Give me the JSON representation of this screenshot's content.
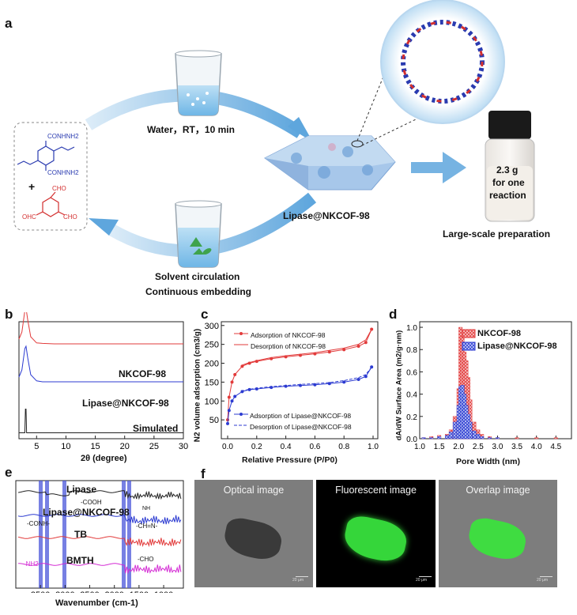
{
  "panel_labels": {
    "a": "a",
    "b": "b",
    "c": "c",
    "d": "d",
    "e": "e",
    "f": "f"
  },
  "panel_a": {
    "top_arrow_label": "Water，RT，10 min",
    "product_label": "Lipase@NKCOF-98",
    "bottom_arrow_label_1": "Solvent circulation",
    "bottom_arrow_label_2": "Continuous embedding",
    "vial_text_1": "2.3 g",
    "vial_text_2": "for one",
    "vial_text_3": "reaction",
    "vial_caption": "Large-scale preparation",
    "monomer_1_group_1": "CONHNH2",
    "monomer_1_group_2": "CONHNH2",
    "plus": "+",
    "monomer_2_group_1": "CHO",
    "monomer_2_group_2": "OHC",
    "monomer_2_group_3": "CHO"
  },
  "panel_b": {
    "series_labels": [
      "NKCOF-98",
      "Lipase@NKCOF-98",
      "Simulated"
    ],
    "colors": {
      "NKCOF-98": "#e23b3b",
      "Lipase@NKCOF-98": "#2c3bd1",
      "Simulated": "#222222"
    },
    "xticks": [
      "5",
      "10",
      "15",
      "20",
      "25",
      "30"
    ],
    "xlabel": "2θ (degree)"
  },
  "panel_c": {
    "legend": [
      "Adsorption of NKCOF-98",
      "Desorption of NKCOF-98",
      "Adsorption of Lipase@NKCOF-98",
      "Desorption of Lipase@NKCOF-98"
    ],
    "ylabel": "N2 volume adsorption (cm3/g)",
    "xlabel": "Relative Pressure (P/P0)",
    "yticks": [
      "50",
      "100",
      "150",
      "200",
      "250",
      "300"
    ],
    "xticks": [
      "0.0",
      "0.2",
      "0.4",
      "0.6",
      "0.8",
      "1.0"
    ]
  },
  "panel_d": {
    "legend": [
      "NKCOF-98",
      "Lipase@NKCOF-98"
    ],
    "ylabel": "dA/dW Surface Area (m2/g·nm)",
    "xlabel": "Pore Width (nm)",
    "yticks": [
      "0.0",
      "0.2",
      "0.4",
      "0.6",
      "0.8",
      "1.0"
    ],
    "xticks": [
      "1.0",
      "1.5",
      "2.0",
      "2.5",
      "3.0",
      "3.5",
      "4.0",
      "4.5"
    ]
  },
  "panel_e": {
    "series_labels": [
      "Lipase",
      "Lipase@NKCOF-98",
      "TB",
      "BMTH"
    ],
    "annotations": [
      "-COOH",
      "NH",
      "-CONH-",
      "-CH=N-",
      "-CHO",
      "-NH2"
    ],
    "xticks": [
      "3500",
      "3000",
      "2500",
      "2000",
      "1500",
      "1000"
    ],
    "xlabel": "Wavenumber (cm-1)"
  },
  "panel_f": {
    "image_titles": [
      "Optical image",
      "Fluorescent image",
      "Overlap image"
    ],
    "scale_label": "20 μm"
  },
  "chart_data": [
    {
      "type": "line",
      "panel": "b",
      "xlabel": "2θ (degree)",
      "xlim": [
        2,
        30
      ],
      "series": [
        {
          "name": "NKCOF-98",
          "x": [
            2,
            2.5,
            3,
            3.2,
            3.5,
            4,
            5,
            6,
            8,
            10,
            15,
            20,
            25,
            30
          ],
          "values": [
            0.35,
            0.5,
            0.95,
            1.0,
            0.75,
            0.4,
            0.27,
            0.26,
            0.25,
            0.25,
            0.25,
            0.25,
            0.25,
            0.25
          ]
        },
        {
          "name": "Lipase@NKCOF-98",
          "x": [
            2,
            2.5,
            3,
            3.2,
            3.5,
            4,
            5,
            6,
            8,
            10,
            15,
            20,
            25,
            30
          ],
          "values": [
            0.3,
            0.45,
            0.9,
            0.95,
            0.7,
            0.35,
            0.22,
            0.2,
            0.2,
            0.2,
            0.2,
            0.2,
            0.2,
            0.2
          ]
        },
        {
          "name": "Simulated",
          "x": [
            2,
            3,
            3.1,
            3.2,
            3.3,
            4,
            10,
            20,
            30
          ],
          "values": [
            0,
            0,
            0.6,
            0.6,
            0,
            0,
            0,
            0,
            0
          ]
        }
      ]
    },
    {
      "type": "line",
      "panel": "c",
      "xlabel": "Relative Pressure (P/P0)",
      "ylabel": "N2 volume adsorption (cm3/g)",
      "xlim": [
        0,
        1.0
      ],
      "ylim": [
        0,
        310
      ],
      "series": [
        {
          "name": "Adsorption of NKCOF-98",
          "x": [
            0.0,
            0.01,
            0.03,
            0.05,
            0.1,
            0.15,
            0.2,
            0.3,
            0.4,
            0.5,
            0.6,
            0.7,
            0.8,
            0.9,
            0.95,
            0.99
          ],
          "values": [
            50,
            110,
            150,
            170,
            192,
            200,
            205,
            212,
            217,
            221,
            225,
            230,
            236,
            245,
            255,
            290
          ]
        },
        {
          "name": "Desorption of NKCOF-98",
          "x": [
            0.99,
            0.95,
            0.9,
            0.8,
            0.7,
            0.6,
            0.5,
            0.4,
            0.3,
            0.2,
            0.15,
            0.1
          ],
          "values": [
            290,
            262,
            250,
            240,
            234,
            228,
            224,
            220,
            215,
            207,
            202,
            195
          ]
        },
        {
          "name": "Adsorption of Lipase@NKCOF-98",
          "x": [
            0.0,
            0.01,
            0.03,
            0.05,
            0.1,
            0.15,
            0.2,
            0.3,
            0.4,
            0.5,
            0.6,
            0.7,
            0.8,
            0.9,
            0.95,
            0.99
          ],
          "values": [
            40,
            75,
            100,
            112,
            125,
            130,
            132,
            136,
            139,
            141,
            143,
            146,
            150,
            157,
            165,
            190
          ]
        },
        {
          "name": "Desorption of Lipase@NKCOF-98",
          "x": [
            0.99,
            0.95,
            0.9,
            0.8,
            0.7,
            0.6,
            0.5,
            0.4,
            0.3,
            0.2,
            0.15,
            0.1
          ],
          "values": [
            190,
            170,
            162,
            154,
            149,
            146,
            144,
            141,
            138,
            134,
            131,
            127
          ]
        }
      ]
    },
    {
      "type": "bar",
      "panel": "d",
      "xlabel": "Pore Width (nm)",
      "ylabel": "dA/dW Surface Area (m2/g·nm)",
      "xlim": [
        1.0,
        4.9
      ],
      "ylim": [
        0,
        1.05
      ],
      "series": [
        {
          "name": "NKCOF-98",
          "x": [
            1.1,
            1.3,
            1.5,
            1.7,
            1.8,
            1.9,
            2.0,
            2.05,
            2.1,
            2.15,
            2.2,
            2.25,
            2.3,
            2.4,
            2.5,
            2.6,
            2.8,
            3.0,
            3.5,
            4.0,
            4.5
          ],
          "values": [
            0.01,
            0.02,
            0.03,
            0.04,
            0.08,
            0.2,
            0.45,
            1.0,
            0.92,
            0.78,
            0.7,
            0.55,
            0.35,
            0.15,
            0.08,
            0.04,
            0.02,
            0.01,
            0.01,
            0.01,
            0.01
          ]
        },
        {
          "name": "Lipase@NKCOF-98",
          "x": [
            1.1,
            1.3,
            1.5,
            1.7,
            1.8,
            1.9,
            2.0,
            2.05,
            2.1,
            2.15,
            2.2,
            2.25,
            2.3,
            2.4,
            2.5,
            2.6,
            2.8,
            3.0,
            3.5,
            4.0,
            4.5
          ],
          "values": [
            0.01,
            0.01,
            0.02,
            0.03,
            0.06,
            0.15,
            0.3,
            0.47,
            0.48,
            0.4,
            0.3,
            0.22,
            0.15,
            0.07,
            0.04,
            0.02,
            0.01,
            0.01,
            0.0,
            0.0,
            0.0
          ]
        }
      ]
    },
    {
      "type": "line",
      "panel": "e",
      "xlabel": "Wavenumber (cm-1)",
      "xlim": [
        4000,
        600
      ],
      "series": [
        {
          "name": "Lipase"
        },
        {
          "name": "Lipase@NKCOF-98"
        },
        {
          "name": "TB"
        },
        {
          "name": "BMTH"
        }
      ]
    }
  ]
}
